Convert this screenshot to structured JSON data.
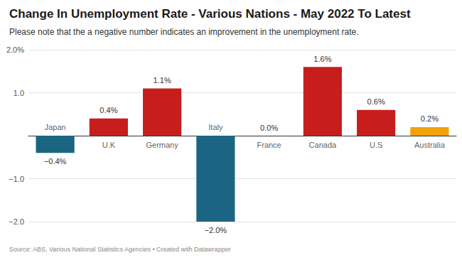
{
  "chart_data": {
    "type": "bar",
    "title": "Change In Unemployment Rate - Various Nations - May 2022 To Latest",
    "subtitle": "Please note that the a negative number indicates an improvement in the unemployment rate.",
    "source": "Source: ABS, Various National Statistics Agencies • Created with Datawrapper",
    "categories": [
      "Japan",
      "U.K",
      "Germany",
      "Italy",
      "France",
      "Canada",
      "U.S",
      "Australia"
    ],
    "values": [
      -0.4,
      0.4,
      1.1,
      -2.0,
      0.0,
      1.6,
      0.6,
      0.2
    ],
    "value_labels": [
      "−0.4%",
      "0.4%",
      "1.1%",
      "−2.0%",
      "0.0%",
      "1.6%",
      "0.6%",
      "0.2%"
    ],
    "colors": [
      "#1b6582",
      "#c71e1d",
      "#c71e1d",
      "#1b6582",
      "#c71e1d",
      "#c71e1d",
      "#c71e1d",
      "#f0a30a"
    ],
    "ylim": [
      -2.0,
      2.0
    ],
    "yticks": [
      {
        "value": -2.0,
        "label": "−2.0"
      },
      {
        "value": -1.0,
        "label": "−1.0"
      },
      {
        "value": 1.0,
        "label": "1.0"
      },
      {
        "value": 2.0,
        "label": "2.0%"
      }
    ],
    "grid": true,
    "data_labels": true
  }
}
